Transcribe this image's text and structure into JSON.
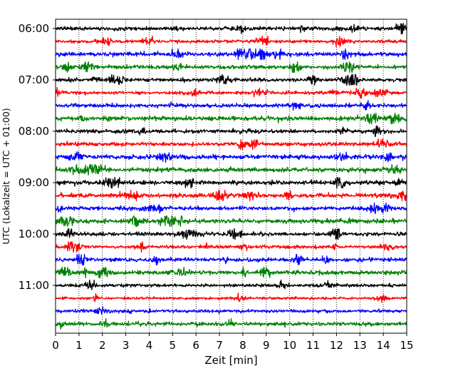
{
  "chart_data": {
    "type": "line",
    "title": "",
    "xlabel": "Zeit  [min]",
    "ylabel": "UTC (Lokalzeit = UTC + 01:00)",
    "xlim": [
      0,
      15
    ],
    "x_ticks": [
      "0",
      "1",
      "2",
      "3",
      "4",
      "5",
      "6",
      "7",
      "8",
      "9",
      "10",
      "11",
      "12",
      "13",
      "14",
      "15"
    ],
    "y_ticks": [
      "06:00",
      "07:00",
      "08:00",
      "09:00",
      "10:00",
      "11:00"
    ],
    "grid": "vertical dotted",
    "colors": [
      "#000000",
      "#ff0000",
      "#0000ff",
      "#008000"
    ],
    "series": [
      {
        "start": "06:00",
        "amplitude": 0.3
      },
      {
        "start": "06:15",
        "amplitude": 0.25
      },
      {
        "start": "06:30",
        "amplitude": 0.35
      },
      {
        "start": "06:45",
        "amplitude": 0.3
      },
      {
        "start": "07:00",
        "amplitude": 0.3
      },
      {
        "start": "07:15",
        "amplitude": 0.25
      },
      {
        "start": "07:30",
        "amplitude": 0.3
      },
      {
        "start": "07:45",
        "amplitude": 0.35
      },
      {
        "start": "08:00",
        "amplitude": 0.3
      },
      {
        "start": "08:15",
        "amplitude": 0.3
      },
      {
        "start": "08:30",
        "amplitude": 0.35
      },
      {
        "start": "08:45",
        "amplitude": 0.35
      },
      {
        "start": "09:00",
        "amplitude": 0.35
      },
      {
        "start": "09:15",
        "amplitude": 0.35
      },
      {
        "start": "09:30",
        "amplitude": 0.3
      },
      {
        "start": "09:45",
        "amplitude": 0.35
      },
      {
        "start": "10:00",
        "amplitude": 0.3
      },
      {
        "start": "10:15",
        "amplitude": 0.25
      },
      {
        "start": "10:30",
        "amplitude": 0.3
      },
      {
        "start": "10:45",
        "amplitude": 0.35
      },
      {
        "start": "11:00",
        "amplitude": 0.25
      },
      {
        "start": "11:15",
        "amplitude": 0.2
      },
      {
        "start": "11:30",
        "amplitude": 0.25
      },
      {
        "start": "11:45",
        "amplitude": 0.3
      }
    ]
  }
}
